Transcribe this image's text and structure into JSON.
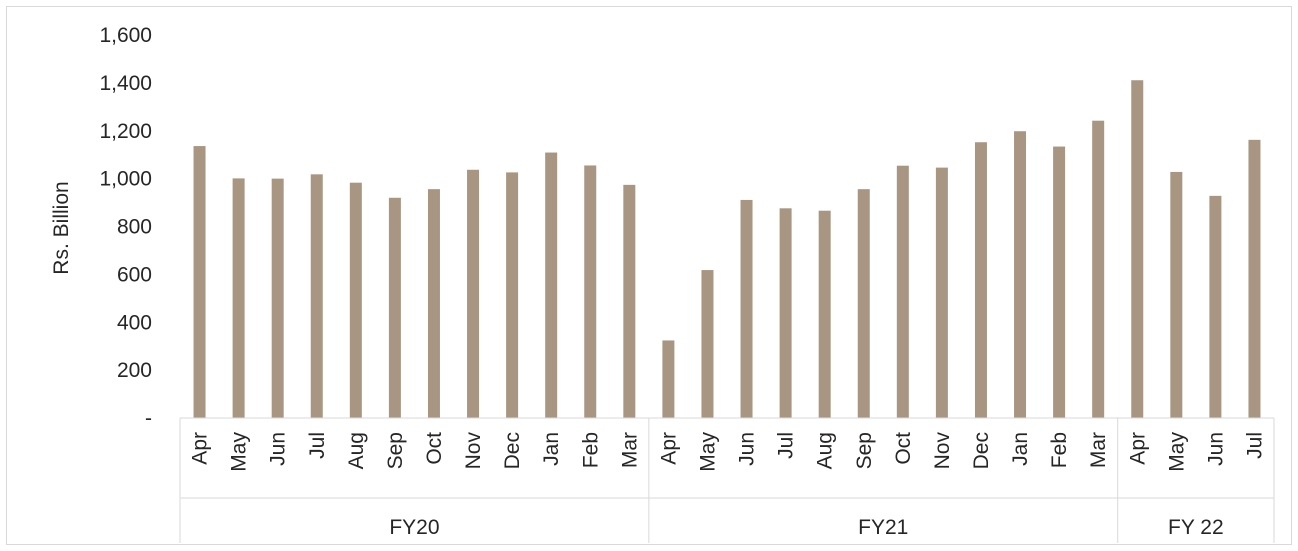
{
  "chart_data": {
    "type": "bar",
    "ylabel": "Rs. Billion",
    "xlabel": "",
    "ylim": [
      0,
      1600
    ],
    "yticks": [
      0,
      200,
      400,
      600,
      800,
      1000,
      1200,
      1400,
      1600
    ],
    "ytick_labels": [
      "-",
      "200",
      "400",
      "600",
      "800",
      "1,000",
      "1,200",
      "1,400",
      "1,600"
    ],
    "bar_color": "#a89682",
    "grid": false,
    "legend": "none",
    "groups": [
      {
        "label": "FY20",
        "categories": [
          "Apr",
          "May",
          "Jun",
          "Jul",
          "Aug",
          "Sep",
          "Oct",
          "Nov",
          "Dec",
          "Jan",
          "Feb",
          "Mar"
        ],
        "values": [
          1136,
          1001,
          1000,
          1018,
          983,
          920,
          956,
          1037,
          1026,
          1109,
          1055,
          974
        ]
      },
      {
        "label": "FY21",
        "categories": [
          "Apr",
          "May",
          "Jun",
          "Jul",
          "Aug",
          "Sep",
          "Oct",
          "Nov",
          "Dec",
          "Jan",
          "Feb",
          "Mar"
        ],
        "values": [
          324,
          618,
          911,
          876,
          866,
          956,
          1054,
          1046,
          1152,
          1198,
          1134,
          1242
        ]
      },
      {
        "label": "FY 22",
        "categories": [
          "Apr",
          "May",
          "Jun",
          "Jul"
        ],
        "values": [
          1411,
          1028,
          928,
          1162
        ]
      }
    ]
  }
}
